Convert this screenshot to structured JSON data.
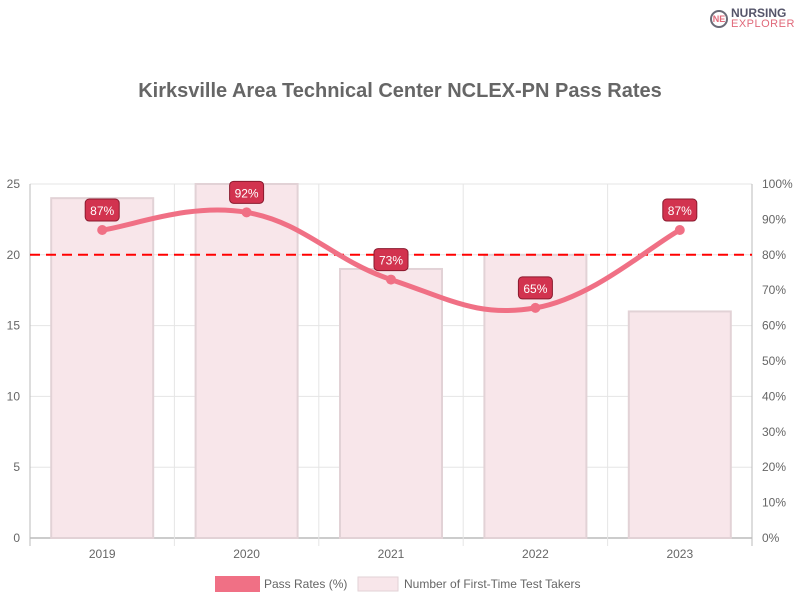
{
  "logo": {
    "line1": "NURSING",
    "line2": "EXPLORER"
  },
  "chart_data": {
    "type": "bar+line",
    "title": "Kirksville Area Technical Center NCLEX-PN Pass Rates",
    "categories": [
      "2019",
      "2020",
      "2021",
      "2022",
      "2023"
    ],
    "series": [
      {
        "name": "Pass Rates (%)",
        "type": "line",
        "axis": "right",
        "values": [
          87,
          92,
          73,
          65,
          87
        ],
        "color": "#f07085"
      },
      {
        "name": "Number of First-Time Test Takers",
        "type": "bar",
        "axis": "left",
        "values": [
          24,
          25,
          19,
          20,
          16
        ],
        "color": "#f8e6ea"
      }
    ],
    "benchmark": {
      "value": 80,
      "axis": "right",
      "color": "#ff0000",
      "style": "dashed"
    },
    "y_left": {
      "range": [
        0,
        25
      ],
      "ticks": [
        "0",
        "5",
        "10",
        "15",
        "20",
        "25"
      ]
    },
    "y_right": {
      "range": [
        0,
        100
      ],
      "ticks": [
        "0%",
        "10%",
        "20%",
        "30%",
        "40%",
        "50%",
        "60%",
        "70%",
        "80%",
        "90%",
        "100%"
      ]
    },
    "data_label_color": "#d2334f",
    "grid": true,
    "legend": "bottom"
  }
}
